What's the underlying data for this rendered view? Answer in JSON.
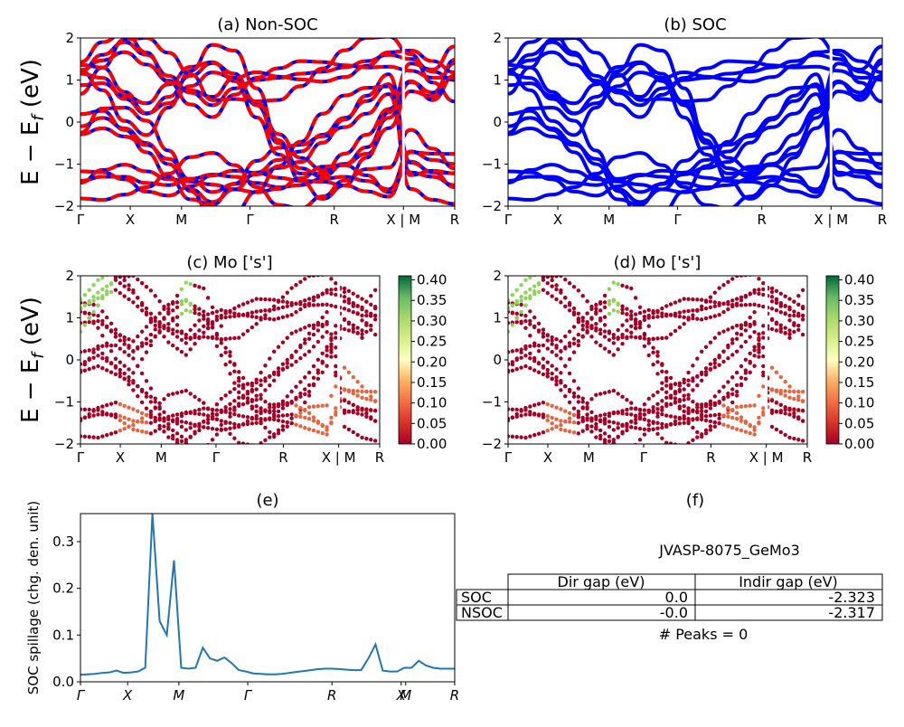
{
  "figure": {
    "colors": {
      "red": "#ff0000",
      "blue": "#0000ff",
      "line": "#1f77b4"
    }
  },
  "chart_data": [
    {
      "id": "a",
      "type": "line",
      "title": "(a) Non-SOC",
      "ylabel": "E − E_f (eV)",
      "ylim": [
        -2,
        2
      ],
      "yticks": [
        "2",
        "1",
        "0",
        "−1",
        "−2"
      ],
      "xticks": [
        "Γ",
        "X",
        "M",
        "Γ",
        "R",
        "X | M",
        "R"
      ],
      "series": [
        {
          "values": [
            1.15,
            1.05,
            0.55,
            0.2,
            0.6,
            1.1,
            1.4,
            1.15,
            0.4,
            -0.5,
            -1.1,
            -1.3,
            -1.0,
            -0.6,
            0.1,
            0.95,
            0.7,
            1.4
          ]
        },
        {
          "values": [
            -1.4,
            -1.3,
            -1.3,
            -1.45,
            -1.5,
            -1.35,
            -1.25,
            -1.3,
            -1.45,
            -1.55,
            -1.5,
            -1.35,
            -1.3,
            -1.4,
            -1.6,
            -0.7,
            -0.9,
            -1.0
          ]
        },
        {
          "values": [
            1.2,
            1.6,
            1.9,
            1.6,
            1.1,
            0.7,
            0.4,
            0.8,
            1.0,
            1.05,
            1.15,
            1.2,
            1.3,
            1.45,
            1.6,
            1.5,
            1.2,
            1.0
          ]
        },
        {
          "values": [
            -0.1,
            0.1,
            -0.15,
            -0.5,
            -1.0,
            -1.6,
            -1.9,
            -1.6,
            -1.2,
            -0.9,
            -0.7,
            -0.3,
            0.1,
            0.5,
            0.9,
            -1.2,
            -1.3,
            -1.5
          ]
        }
      ],
      "style": "red-blue-dashed"
    },
    {
      "id": "b",
      "type": "line",
      "title": "(b) SOC",
      "ylim": [
        -2,
        2
      ],
      "yticks": [
        "2",
        "1",
        "0",
        "−1",
        "−2"
      ],
      "xticks": [
        "Γ",
        "X",
        "M",
        "Γ",
        "R",
        "X | M",
        "R"
      ],
      "series": [
        {
          "values": [
            1.15,
            1.05,
            0.55,
            0.2,
            0.6,
            1.1,
            1.4,
            1.15,
            0.4,
            -0.5,
            -1.1,
            -1.3,
            -1.0,
            -0.6,
            0.1,
            0.95,
            0.7,
            1.4
          ]
        },
        {
          "values": [
            -1.4,
            -1.3,
            -1.3,
            -1.45,
            -1.5,
            -1.35,
            -1.25,
            -1.3,
            -1.45,
            -1.55,
            -1.5,
            -1.35,
            -1.3,
            -1.4,
            -1.6,
            -0.7,
            -0.9,
            -1.0
          ]
        },
        {
          "values": [
            1.2,
            1.6,
            1.9,
            1.6,
            1.1,
            0.7,
            0.4,
            0.8,
            1.0,
            1.05,
            1.15,
            1.2,
            1.3,
            1.45,
            1.6,
            1.5,
            1.2,
            1.0
          ]
        },
        {
          "values": [
            -0.1,
            0.1,
            -0.15,
            -0.5,
            -1.0,
            -1.6,
            -1.9,
            -1.6,
            -1.2,
            -0.9,
            -0.7,
            -0.3,
            0.1,
            0.5,
            0.9,
            -1.2,
            -1.3,
            -1.5
          ]
        }
      ],
      "style": "blue"
    },
    {
      "id": "c",
      "type": "scatter",
      "title": "(c)  Mo ['s']",
      "ylabel": "E − E_f (eV)",
      "ylim": [
        -2,
        2
      ],
      "yticks": [
        "2",
        "1",
        "0",
        "−1",
        "−2"
      ],
      "xticks": [
        "Γ",
        "X",
        "M",
        "Γ",
        "R",
        "X | M",
        "R"
      ],
      "colorbar": [
        "0.40",
        "0.35",
        "0.30",
        "0.25",
        "0.20",
        "0.15",
        "0.10",
        "0.05",
        "0.00"
      ]
    },
    {
      "id": "d",
      "type": "scatter",
      "title": "(d) Mo ['s']",
      "ylim": [
        -2,
        2
      ],
      "yticks": [
        "2",
        "1",
        "0",
        "−1",
        "−2"
      ],
      "xticks": [
        "Γ",
        "X",
        "M",
        "Γ",
        "R",
        "X | M",
        "R"
      ],
      "colorbar": [
        "0.40",
        "0.35",
        "0.30",
        "0.25",
        "0.20",
        "0.15",
        "0.10",
        "0.05",
        "0.00"
      ]
    },
    {
      "id": "e",
      "type": "line",
      "title": "(e)",
      "ylabel": "SOC spillage (chg. den. unit)",
      "ylim": [
        0,
        0.36
      ],
      "yticks": [
        "0.3",
        "0.2",
        "0.1",
        "0.0"
      ],
      "xticks": [
        "Γ",
        "X",
        "M",
        "Γ",
        "R",
        "X",
        "M",
        "R"
      ],
      "values": [
        0.015,
        0.016,
        0.017,
        0.019,
        0.02,
        0.024,
        0.019,
        0.02,
        0.022,
        0.03,
        0.36,
        0.13,
        0.1,
        0.26,
        0.03,
        0.028,
        0.03,
        0.073,
        0.05,
        0.045,
        0.052,
        0.04,
        0.025,
        0.022,
        0.018,
        0.017,
        0.016,
        0.016,
        0.017,
        0.019,
        0.021,
        0.023,
        0.025,
        0.027,
        0.028,
        0.028,
        0.027,
        0.026,
        0.025,
        0.025,
        0.05,
        0.08,
        0.024,
        0.022,
        0.022,
        0.03,
        0.03,
        0.045,
        0.035,
        0.03,
        0.028,
        0.028,
        0.028
      ]
    }
  ],
  "panel_f": {
    "title": "(f)",
    "material": "JVASP-8075_GeMo3",
    "headers": [
      "Dir gap (eV)",
      "Indir gap (eV)"
    ],
    "rows": [
      {
        "label": "SOC",
        "dir": "0.0",
        "indir": "-2.323"
      },
      {
        "label": "NSOC",
        "dir": "-0.0",
        "indir": "-2.317"
      }
    ],
    "peaks": "# Peaks = 0"
  }
}
